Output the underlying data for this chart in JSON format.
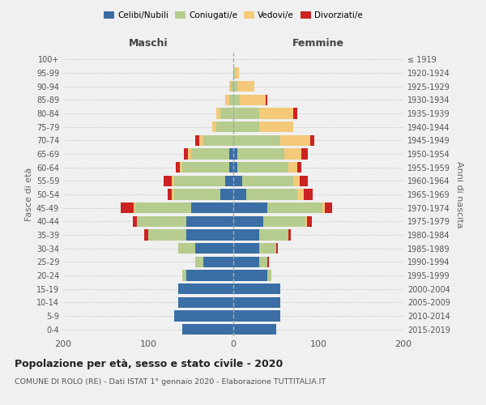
{
  "age_groups": [
    "0-4",
    "5-9",
    "10-14",
    "15-19",
    "20-24",
    "25-29",
    "30-34",
    "35-39",
    "40-44",
    "45-49",
    "50-54",
    "55-59",
    "60-64",
    "65-69",
    "70-74",
    "75-79",
    "80-84",
    "85-89",
    "90-94",
    "95-99",
    "100+"
  ],
  "birth_years": [
    "2015-2019",
    "2010-2014",
    "2005-2009",
    "2000-2004",
    "1995-1999",
    "1990-1994",
    "1985-1989",
    "1980-1984",
    "1975-1979",
    "1970-1974",
    "1965-1969",
    "1960-1964",
    "1955-1959",
    "1950-1954",
    "1945-1949",
    "1940-1944",
    "1935-1939",
    "1930-1934",
    "1925-1929",
    "1920-1924",
    "≤ 1919"
  ],
  "maschi": {
    "celibi": [
      60,
      70,
      65,
      65,
      55,
      35,
      45,
      55,
      55,
      50,
      15,
      10,
      5,
      5,
      0,
      0,
      0,
      0,
      0,
      0,
      0
    ],
    "coniugati": [
      0,
      0,
      0,
      0,
      5,
      10,
      20,
      45,
      58,
      65,
      55,
      60,
      55,
      45,
      35,
      20,
      15,
      5,
      3,
      0,
      0
    ],
    "vedovi": [
      0,
      0,
      0,
      0,
      0,
      0,
      0,
      0,
      0,
      2,
      2,
      2,
      3,
      3,
      5,
      5,
      5,
      5,
      2,
      0,
      0
    ],
    "divorziati": [
      0,
      0,
      0,
      0,
      0,
      0,
      0,
      5,
      5,
      15,
      5,
      10,
      5,
      5,
      5,
      0,
      0,
      0,
      0,
      0,
      0
    ]
  },
  "femmine": {
    "nubili": [
      50,
      55,
      55,
      55,
      40,
      30,
      30,
      30,
      35,
      40,
      15,
      10,
      5,
      5,
      0,
      0,
      0,
      0,
      0,
      0,
      0
    ],
    "coniugate": [
      0,
      0,
      0,
      0,
      5,
      10,
      20,
      35,
      50,
      65,
      60,
      60,
      60,
      55,
      55,
      30,
      30,
      8,
      5,
      2,
      0
    ],
    "vedove": [
      0,
      0,
      0,
      0,
      0,
      0,
      0,
      0,
      2,
      3,
      8,
      8,
      10,
      20,
      35,
      40,
      40,
      30,
      20,
      5,
      0
    ],
    "divorziate": [
      0,
      0,
      0,
      0,
      0,
      2,
      2,
      3,
      5,
      8,
      10,
      10,
      5,
      8,
      5,
      0,
      5,
      2,
      0,
      0,
      0
    ]
  },
  "colors": {
    "celibi": "#3a6ea5",
    "coniugati": "#b5cc8e",
    "vedovi": "#f4c97a",
    "divorziati": "#cc2222"
  },
  "title": "Popolazione per età, sesso e stato civile - 2020",
  "subtitle": "COMUNE DI ROLO (RE) - Dati ISTAT 1° gennaio 2020 - Elaborazione TUTTITALIA.IT",
  "xlabel_left": "Maschi",
  "xlabel_right": "Femmine",
  "ylabel_left": "Fasce di età",
  "ylabel_right": "Anni di nascita",
  "xlim": 200,
  "background_color": "#f0f0f0",
  "grid_color": "#cccccc"
}
